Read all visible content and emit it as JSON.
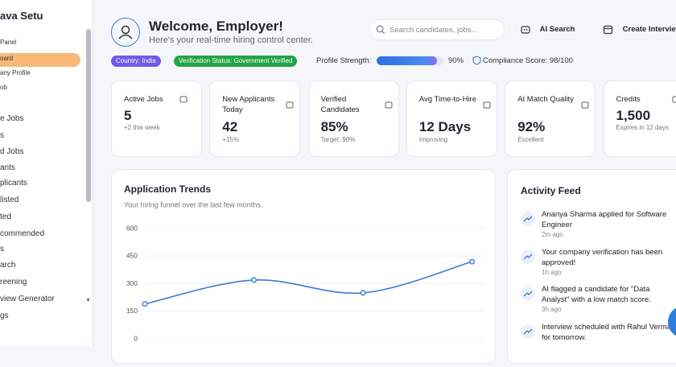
{
  "sidebar": {
    "brand": "ava Setu",
    "items": [
      "Panel",
      "oard",
      "any Profile",
      "ob",
      "e Jobs",
      "s",
      "d Jobs",
      "ants",
      "plicants",
      "listed",
      "ted",
      "commended",
      "s",
      "arch",
      "reening",
      "view Generator",
      "gs"
    ]
  },
  "header": {
    "title": "Welcome, Employer!",
    "subtitle": "Here's your real-time hiring control center.",
    "search_placeholder": "Search candidates, jobs...",
    "ai_search": "AI Search",
    "create_interview": "Create Interview"
  },
  "badges": {
    "country": "Country: India",
    "verification": "Verification Status: Government Verified",
    "profile_strength_label": "Profile Strength:",
    "profile_strength": 90,
    "profile_strength_label_value": "90%",
    "compliance": "Compliance Score: 98/100"
  },
  "stats": [
    {
      "label": "Active Jobs",
      "value": "5",
      "note": "+2 this week"
    },
    {
      "label": "New Applicants Today",
      "value": "42",
      "note": "+15%"
    },
    {
      "label": "Verified Candidates",
      "value": "85%",
      "note": "Target: 90%"
    },
    {
      "label": "Avg Time-to-Hire",
      "value": "12 Days",
      "note": "Improving"
    },
    {
      "label": "AI Match Quality",
      "value": "92%",
      "note": "Excellent"
    },
    {
      "label": "Credits",
      "value": "1,500",
      "note": "Expires in 12 days"
    }
  ],
  "chart_data": {
    "type": "line",
    "title": "Application Trends",
    "subtitle": "Your hiring funnel over the last few months.",
    "categories": [
      null,
      null,
      null,
      null
    ],
    "values": [
      190,
      320,
      250,
      420
    ],
    "color": "#3a7bd5",
    "ylim": [
      0,
      600
    ],
    "yticks": [
      0,
      150,
      300,
      450,
      600
    ],
    "grid": true
  },
  "activity_feed": {
    "title": "Activity Feed",
    "items": [
      {
        "text": "Ananya Sharma applied for Software Engineer",
        "time": "2m ago"
      },
      {
        "text": "Your company verification has been approved!",
        "time": "1h ago"
      },
      {
        "text": "AI flagged a candidate for \"Data Analyst\" with a low match score.",
        "time": "3h ago"
      },
      {
        "text": "Interview scheduled with Rahul Verma for tomorrow.",
        "time": ""
      }
    ]
  }
}
